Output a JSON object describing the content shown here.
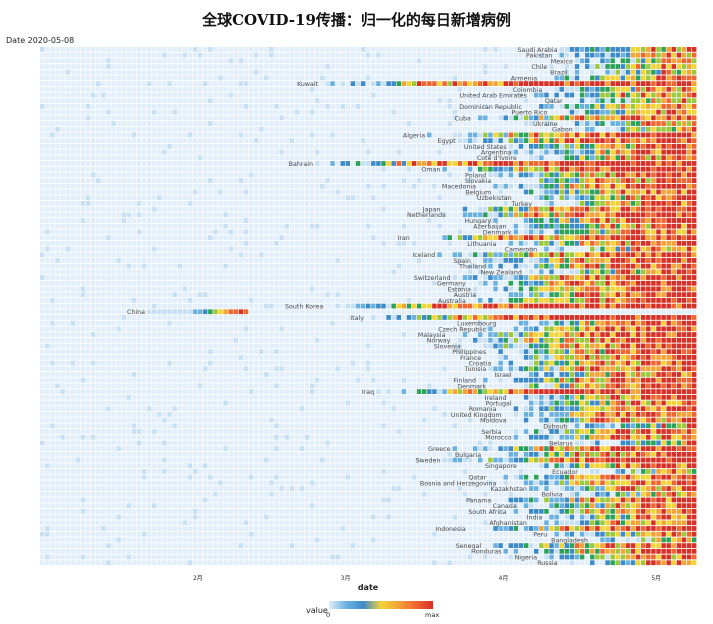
{
  "title": "全球COVID-19传播：归一化的每日新增病例",
  "date_label": "Date 2020-05-08",
  "colors": {
    "scale": [
      "#e2eef9",
      "#c6dff2",
      "#6ab1e0",
      "#3d8ac9",
      "#2ca15a",
      "#9cc83b",
      "#f2d338",
      "#f2a436",
      "#f06630",
      "#d73127"
    ]
  },
  "legend": {
    "title": "value",
    "min_label": "0",
    "max_label": "max"
  },
  "chart_data": {
    "type": "heatmap",
    "xlabel": "date",
    "x_ticks": [
      "2月",
      "3月",
      "4月",
      "5月"
    ],
    "x_tick_dates": [
      "2020-02-01",
      "2020-03-01",
      "2020-04-01",
      "2020-05-01"
    ],
    "x_range": [
      "2020-01-01",
      "2020-05-08"
    ],
    "value_range": [
      0,
      1
    ],
    "countries": [
      {
        "name": "Saudi Arabia",
        "onset": "2020-04-12"
      },
      {
        "name": "Pakistan",
        "onset": "2020-04-11"
      },
      {
        "name": "Mexico",
        "onset": "2020-04-15"
      },
      {
        "name": "Chile",
        "onset": "2020-04-10"
      },
      {
        "name": "Brazil",
        "onset": "2020-04-14"
      },
      {
        "name": "Armenia",
        "onset": "2020-04-08"
      },
      {
        "name": "Kuwait",
        "onset": "2020-02-25"
      },
      {
        "name": "Colombia",
        "onset": "2020-04-09"
      },
      {
        "name": "United Arab Emirates",
        "onset": "2020-04-06"
      },
      {
        "name": "Qatar",
        "onset": "2020-04-13"
      },
      {
        "name": "Dominican Republic",
        "onset": "2020-04-05"
      },
      {
        "name": "Puerto Rico",
        "onset": "2020-04-10"
      },
      {
        "name": "Cuba",
        "onset": "2020-03-26"
      },
      {
        "name": "Ukraine",
        "onset": "2020-04-12"
      },
      {
        "name": "Gabon",
        "onset": "2020-04-15"
      },
      {
        "name": "Algeria",
        "onset": "2020-03-17"
      },
      {
        "name": "Egypt",
        "onset": "2020-03-23"
      },
      {
        "name": "United States",
        "onset": "2020-04-02"
      },
      {
        "name": "Argentina",
        "onset": "2020-04-03"
      },
      {
        "name": "Cote d'Ivoire",
        "onset": "2020-04-04"
      },
      {
        "name": "Bahrain",
        "onset": "2020-02-24"
      },
      {
        "name": "Oman",
        "onset": "2020-03-20"
      },
      {
        "name": "Poland",
        "onset": "2020-03-29"
      },
      {
        "name": "Slovakia",
        "onset": "2020-03-30"
      },
      {
        "name": "Macedonia",
        "onset": "2020-03-27"
      },
      {
        "name": "Belgium",
        "onset": "2020-03-30"
      },
      {
        "name": "Uzbekistan",
        "onset": "2020-04-03"
      },
      {
        "name": "Turkey",
        "onset": "2020-04-07"
      },
      {
        "name": "Japan",
        "onset": "2020-03-20"
      },
      {
        "name": "Netherlands",
        "onset": "2020-03-21"
      },
      {
        "name": "Hungary",
        "onset": "2020-03-30"
      },
      {
        "name": "Azerbaijan",
        "onset": "2020-04-02"
      },
      {
        "name": "Denmark",
        "onset": "2020-04-03"
      },
      {
        "name": "Iran",
        "onset": "2020-03-14"
      },
      {
        "name": "Lithuania",
        "onset": "2020-03-31"
      },
      {
        "name": "Cameroon",
        "onset": "2020-04-08"
      },
      {
        "name": "Iceland",
        "onset": "2020-03-19"
      },
      {
        "name": "Spain",
        "onset": "2020-03-26"
      },
      {
        "name": "Thailand",
        "onset": "2020-03-29"
      },
      {
        "name": "New Zealand",
        "onset": "2020-04-05"
      },
      {
        "name": "Switzerland",
        "onset": "2020-03-22"
      },
      {
        "name": "Germany",
        "onset": "2020-03-25"
      },
      {
        "name": "Estonia",
        "onset": "2020-03-26"
      },
      {
        "name": "Austria",
        "onset": "2020-03-27"
      },
      {
        "name": "Australia",
        "onset": "2020-03-25"
      },
      {
        "name": "South Korea",
        "onset": "2020-02-26"
      },
      {
        "name": "China",
        "onset": "2020-01-22"
      },
      {
        "name": "Italy",
        "onset": "2020-03-05"
      },
      {
        "name": "Luxembourg",
        "onset": "2020-03-31"
      },
      {
        "name": "Czech Republic",
        "onset": "2020-03-29"
      },
      {
        "name": "Malaysia",
        "onset": "2020-03-21"
      },
      {
        "name": "Norway",
        "onset": "2020-03-22"
      },
      {
        "name": "Slovenia",
        "onset": "2020-03-24"
      },
      {
        "name": "Philippines",
        "onset": "2020-03-29"
      },
      {
        "name": "France",
        "onset": "2020-03-28"
      },
      {
        "name": "Croatia",
        "onset": "2020-03-30"
      },
      {
        "name": "Tunisia",
        "onset": "2020-03-29"
      },
      {
        "name": "Israel",
        "onset": "2020-04-03"
      },
      {
        "name": "Finland",
        "onset": "2020-03-27"
      },
      {
        "name": "Denmark",
        "onset": "2020-03-29"
      },
      {
        "name": "Iraq",
        "onset": "2020-03-07"
      },
      {
        "name": "Ireland",
        "onset": "2020-04-02"
      },
      {
        "name": "Portugal",
        "onset": "2020-04-03"
      },
      {
        "name": "Romania",
        "onset": "2020-03-31"
      },
      {
        "name": "United Kingdom",
        "onset": "2020-04-01"
      },
      {
        "name": "Moldova",
        "onset": "2020-04-02"
      },
      {
        "name": "Djibouti",
        "onset": "2020-04-14"
      },
      {
        "name": "Serbia",
        "onset": "2020-04-01"
      },
      {
        "name": "Morocco",
        "onset": "2020-04-03"
      },
      {
        "name": "Belarus",
        "onset": "2020-04-15"
      },
      {
        "name": "Greece",
        "onset": "2020-03-22"
      },
      {
        "name": "Bulgaria",
        "onset": "2020-03-28"
      },
      {
        "name": "Sweden",
        "onset": "2020-03-20"
      },
      {
        "name": "Singapore",
        "onset": "2020-04-04"
      },
      {
        "name": "Ecuador",
        "onset": "2020-04-16"
      },
      {
        "name": "Qatar",
        "onset": "2020-03-29"
      },
      {
        "name": "Bosnia and Herzegovina",
        "onset": "2020-03-31"
      },
      {
        "name": "Kazakhstan",
        "onset": "2020-04-06"
      },
      {
        "name": "Bolivia",
        "onset": "2020-04-13"
      },
      {
        "name": "Panama",
        "onset": "2020-03-30"
      },
      {
        "name": "Canada",
        "onset": "2020-04-04"
      },
      {
        "name": "South Africa",
        "onset": "2020-04-02"
      },
      {
        "name": "India",
        "onset": "2020-04-09"
      },
      {
        "name": "Afghanistan",
        "onset": "2020-04-06"
      },
      {
        "name": "Indonesia",
        "onset": "2020-03-25"
      },
      {
        "name": "Peru",
        "onset": "2020-04-10"
      },
      {
        "name": "Bangladesh",
        "onset": "2020-04-18"
      },
      {
        "name": "Senegal",
        "onset": "2020-03-28"
      },
      {
        "name": "Honduras",
        "onset": "2020-04-01"
      },
      {
        "name": "Nigeria",
        "onset": "2020-04-08"
      },
      {
        "name": "Russia",
        "onset": "2020-04-12"
      }
    ]
  }
}
